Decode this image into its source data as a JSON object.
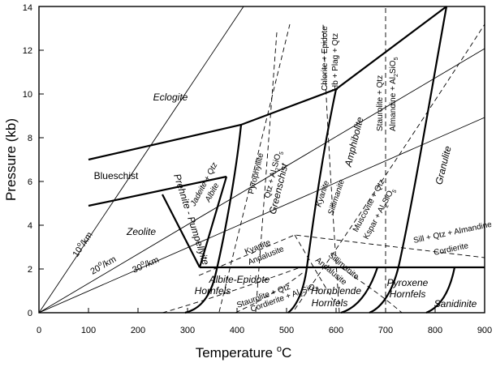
{
  "axes": {
    "xlabel": "Temperature ",
    "xlabel_unit": "C",
    "xlabel_degree": "o",
    "ylabel": "Pressure (kb)",
    "x_ticks": [
      "0",
      "100",
      "200",
      "300",
      "400",
      "500",
      "600",
      "700",
      "800",
      "900"
    ],
    "y_ticks": [
      "0",
      "2",
      "4",
      "6",
      "8",
      "10",
      "12",
      "14"
    ]
  },
  "facies": {
    "eclogite": "Eclogite",
    "blueschist": "Blueschist",
    "zeolite": "Zeolite",
    "prehnite_pumpellyite": "Prehnite - Pumpellyite",
    "greenschist": "Greenschist",
    "amphibolite": "Amphibolite",
    "granulite": "Granulite",
    "albite_epidote_hornfels": "Albite-Epidote",
    "albite_epidote_hornfels_2": "Hornfels",
    "hornblende_hornfels": "Hornblende",
    "hornblende_hornfels_2": "Hornfels",
    "pyroxene_hornfels": "Pyroxene",
    "pyroxene_hornfels_2": "Hornfels",
    "sanidinite": "Sanidinite"
  },
  "reactions": {
    "jadeite_qtz": "Jadeite + Qtz",
    "albite": "Albite",
    "pyrophyllite": "Pyrophyllite",
    "qtz_al2sio5": "Qtz + Al",
    "chlorite_epidote": "Chlorite + Epidote",
    "hb_plag_qtz": "Hb + Plag + Qtz",
    "staurolite_qtz": "Staurolite + Qtz",
    "almandine_al2sio5": "Almandine + Al",
    "kyanite_sillimanite_1": "Kyanite",
    "kyanite_sillimanite_2": "Sillimanite",
    "muscovite_qtz": "Muscovite + Qtz",
    "kspar_al2sio5": "Kspar + Al",
    "kyanite_andalusite_1": "Kyanite",
    "kyanite_andalusite_2": "Andalusite",
    "sillimanite_andalusite_1": "Sillimanite",
    "sillimanite_andalusite_2": "Andalusite",
    "sill_qtz_almandine": "Sill + Qtz + Almandine",
    "cordierite": "Cordierite",
    "staurolite_qtz_low": "Staurolite + Qtz",
    "cordierite_al2sio5": "Cordierite + Al",
    "sub2": "2",
    "sio5": "SiO",
    "sub5": "5"
  },
  "gradients": {
    "g10": "10",
    "g20": "20",
    "g30": "30",
    "unit": "/km",
    "degree": "o"
  },
  "colors": {
    "ink": "#000000",
    "background": "#ffffff"
  }
}
